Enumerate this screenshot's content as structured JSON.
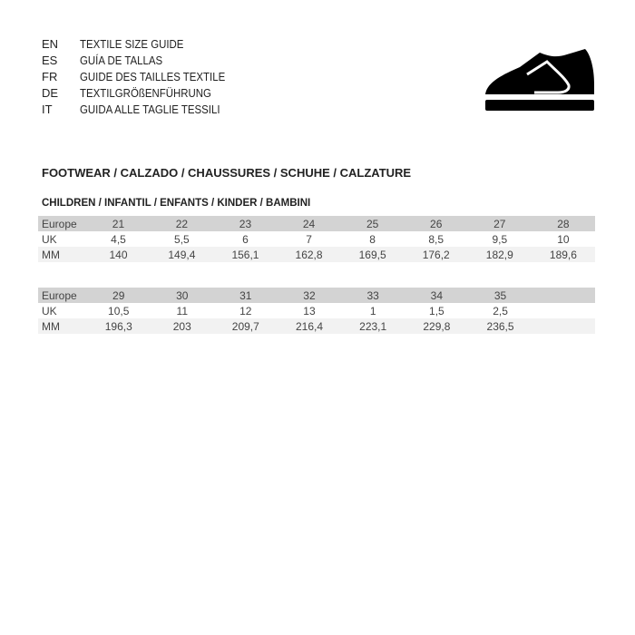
{
  "languages": [
    {
      "code": "EN",
      "text": "TEXTILE SIZE GUIDE"
    },
    {
      "code": "ES",
      "text": "GUÍA DE TALLAS"
    },
    {
      "code": "FR",
      "text": "GUIDE DES TAILLES TEXTILE"
    },
    {
      "code": "DE",
      "text": "TEXTILGRÖßENFÜHRUNG"
    },
    {
      "code": "IT",
      "text": "GUIDA ALLE TAGLIE TESSILI"
    }
  ],
  "icon": "shoe-icon",
  "section_title": "FOOTWEAR / CALZADO / CHAUSSURES / SCHUHE / CALZATURE",
  "subtitle": "CHILDREN / INFANTIL / ENFANTS / KINDER / BAMBINI",
  "tables": [
    {
      "rows": [
        {
          "label": "Europe",
          "values": [
            "21",
            "22",
            "23",
            "24",
            "25",
            "26",
            "27",
            "28"
          ]
        },
        {
          "label": "UK",
          "values": [
            "4,5",
            "5,5",
            "6",
            "7",
            "8",
            "8,5",
            "9,5",
            "10"
          ]
        },
        {
          "label": "MM",
          "values": [
            "140",
            "149,4",
            "156,1",
            "162,8",
            "169,5",
            "176,2",
            "182,9",
            "189,6"
          ]
        }
      ]
    },
    {
      "rows": [
        {
          "label": "Europe",
          "values": [
            "29",
            "30",
            "31",
            "32",
            "33",
            "34",
            "35",
            ""
          ]
        },
        {
          "label": "UK",
          "values": [
            "10,5",
            "11",
            "12",
            "13",
            "1",
            "1,5",
            "2,5",
            ""
          ]
        },
        {
          "label": "MM",
          "values": [
            "196,3",
            "203",
            "209,7",
            "216,4",
            "223,1",
            "229,8",
            "236,5",
            ""
          ]
        }
      ]
    }
  ]
}
